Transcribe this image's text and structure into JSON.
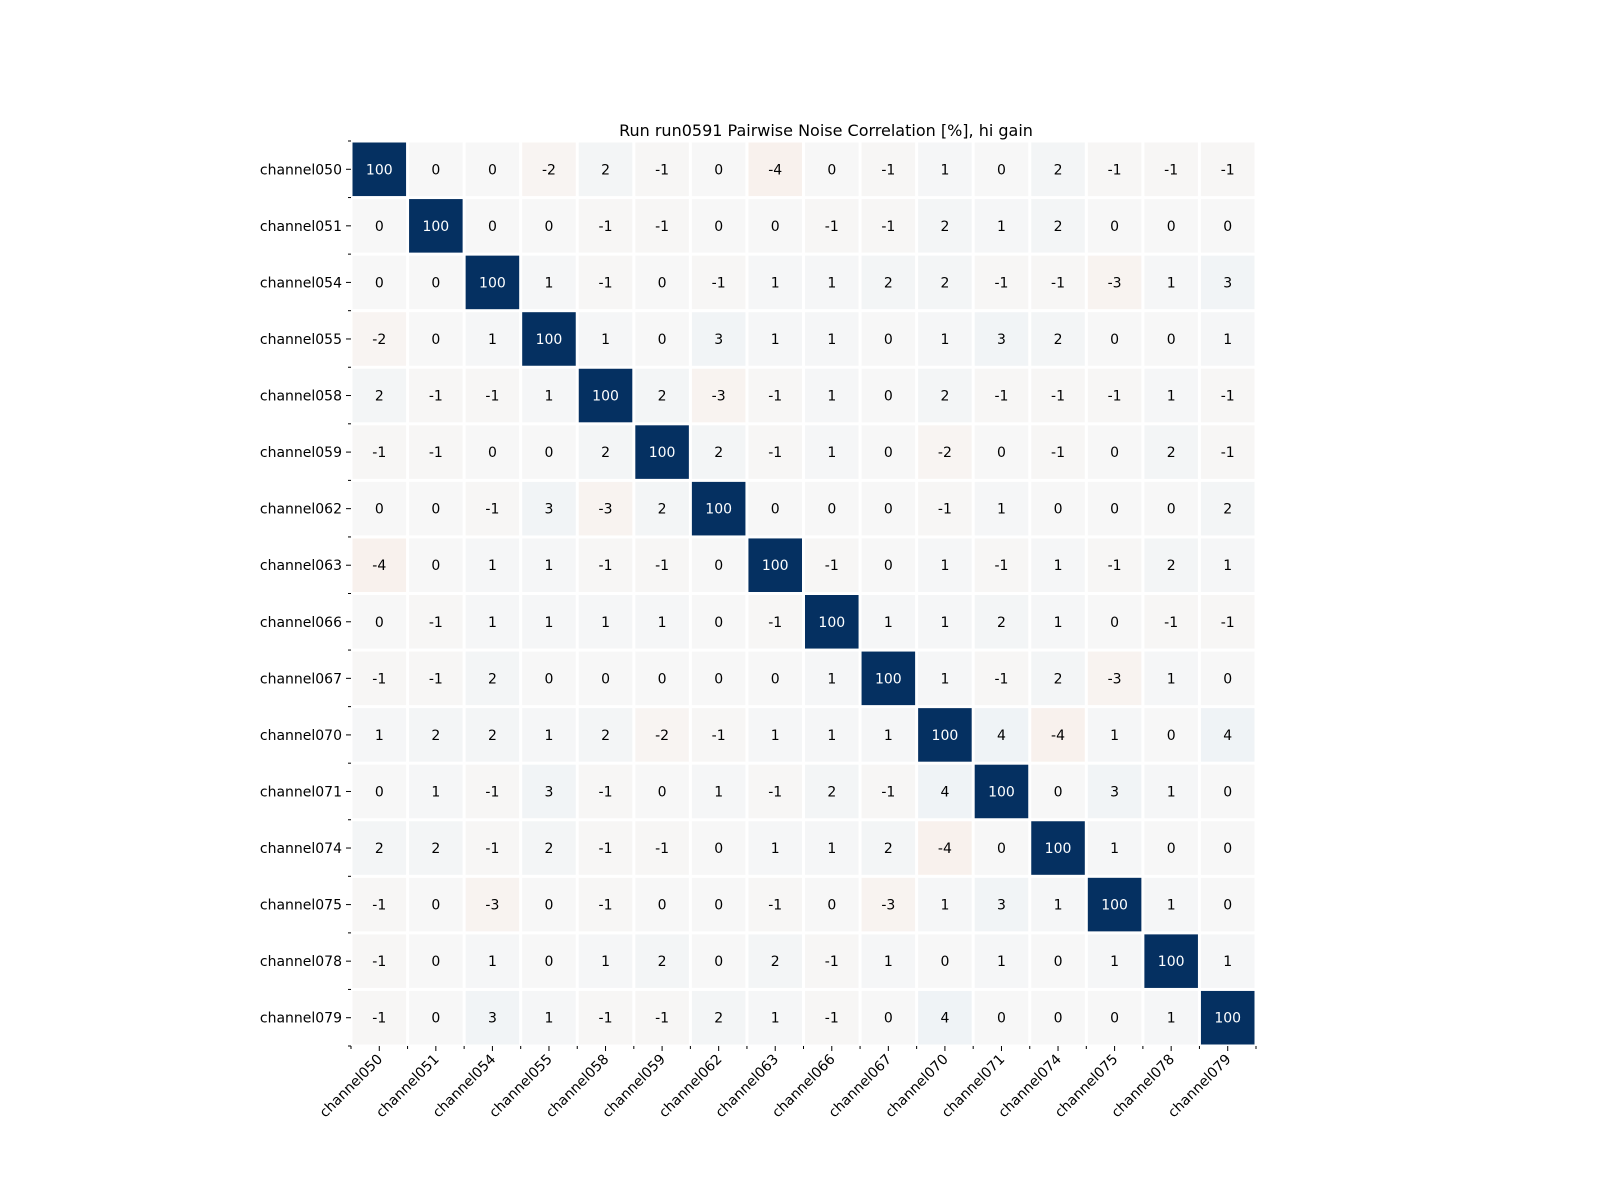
{
  "chart_data": {
    "type": "heatmap",
    "title": "Run run0591 Pairwise Noise Correlation [%], hi gain",
    "xlabel": "",
    "ylabel": "",
    "categories": [
      "channel050",
      "channel051",
      "channel054",
      "channel055",
      "channel058",
      "channel059",
      "channel062",
      "channel063",
      "channel066",
      "channel067",
      "channel070",
      "channel071",
      "channel074",
      "channel075",
      "channel078",
      "channel079"
    ],
    "x_categories": [
      "channel050",
      "channel051",
      "channel054",
      "channel055",
      "channel058",
      "channel059",
      "channel062",
      "channel063",
      "channel066",
      "channel067",
      "channel070",
      "channel071",
      "channel074",
      "channel075",
      "channel078",
      "channel079"
    ],
    "y_categories": [
      "channel050",
      "channel051",
      "channel054",
      "channel055",
      "channel058",
      "channel059",
      "channel062",
      "channel063",
      "channel066",
      "channel067",
      "channel070",
      "channel071",
      "channel074",
      "channel075",
      "channel078",
      "channel079"
    ],
    "values": [
      [
        100,
        0,
        0,
        -2,
        2,
        -1,
        0,
        -4,
        0,
        -1,
        1,
        0,
        2,
        -1,
        -1,
        -1
      ],
      [
        0,
        100,
        0,
        0,
        -1,
        -1,
        0,
        0,
        -1,
        -1,
        2,
        1,
        2,
        0,
        0,
        0
      ],
      [
        0,
        0,
        100,
        1,
        -1,
        0,
        -1,
        1,
        1,
        2,
        2,
        -1,
        -1,
        -3,
        1,
        3
      ],
      [
        -2,
        0,
        1,
        100,
        1,
        0,
        3,
        1,
        1,
        0,
        1,
        3,
        2,
        0,
        0,
        1
      ],
      [
        2,
        -1,
        -1,
        1,
        100,
        2,
        -3,
        -1,
        1,
        0,
        2,
        -1,
        -1,
        -1,
        1,
        -1
      ],
      [
        -1,
        -1,
        0,
        0,
        2,
        100,
        2,
        -1,
        1,
        0,
        -2,
        0,
        -1,
        0,
        2,
        -1
      ],
      [
        0,
        0,
        -1,
        3,
        -3,
        2,
        100,
        0,
        0,
        0,
        -1,
        1,
        0,
        0,
        0,
        2
      ],
      [
        -4,
        0,
        1,
        1,
        -1,
        -1,
        0,
        100,
        -1,
        0,
        1,
        -1,
        1,
        -1,
        2,
        1
      ],
      [
        0,
        -1,
        1,
        1,
        1,
        1,
        0,
        -1,
        100,
        1,
        1,
        2,
        1,
        0,
        -1,
        -1
      ],
      [
        -1,
        -1,
        2,
        0,
        0,
        0,
        0,
        0,
        1,
        100,
        1,
        -1,
        2,
        -3,
        1,
        0
      ],
      [
        1,
        2,
        2,
        1,
        2,
        -2,
        -1,
        1,
        1,
        1,
        100,
        4,
        -4,
        1,
        0,
        4
      ],
      [
        0,
        1,
        -1,
        3,
        -1,
        0,
        1,
        -1,
        2,
        -1,
        4,
        100,
        0,
        3,
        1,
        0
      ],
      [
        2,
        2,
        -1,
        2,
        -1,
        -1,
        0,
        1,
        1,
        2,
        -4,
        0,
        100,
        1,
        0,
        0
      ],
      [
        -1,
        0,
        -3,
        0,
        -1,
        0,
        0,
        -1,
        0,
        -3,
        1,
        3,
        1,
        100,
        1,
        0
      ],
      [
        -1,
        0,
        1,
        0,
        1,
        2,
        0,
        2,
        -1,
        1,
        0,
        1,
        0,
        1,
        100,
        1
      ],
      [
        -1,
        0,
        3,
        1,
        -1,
        -1,
        2,
        1,
        -1,
        0,
        4,
        0,
        0,
        0,
        1,
        100
      ]
    ],
    "colormap": "diverging red-white-blue",
    "vlim": [
      -100,
      100
    ],
    "colors": {
      "positive_max": "#053061",
      "negative_max": "#67001f",
      "neutral": "#f7f7f7",
      "cell_border": "#ffffff",
      "text_dark": "#000000",
      "text_light": "#ffffff"
    },
    "grid": false,
    "legend": "none"
  }
}
